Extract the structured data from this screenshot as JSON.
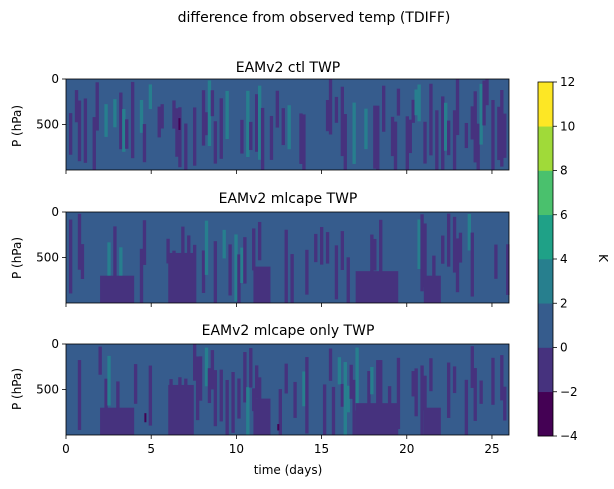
{
  "figure": {
    "suptitle": "difference from observed temp (TDIFF)"
  },
  "chart_data": {
    "type": "heatmap",
    "plot_style": "filled contour (contourf)",
    "colormap": "viridis",
    "panels": [
      {
        "title": "EAMv2 ctl TWP",
        "ylabel": "P (hPa)",
        "xlim": [
          0,
          26
        ],
        "ylim": [
          0,
          1000
        ],
        "y_inverted": true,
        "dominant_range": [
          0,
          2
        ],
        "secondary_ranges": [
          [
            -2,
            0
          ],
          [
            2,
            4
          ]
        ]
      },
      {
        "title": "EAMv2 mlcape TWP",
        "ylabel": "P (hPa)",
        "xlim": [
          0,
          26
        ],
        "ylim": [
          0,
          1000
        ],
        "y_inverted": true,
        "dominant_range": [
          0,
          2
        ],
        "secondary_ranges": [
          [
            -2,
            0
          ],
          [
            2,
            4
          ]
        ]
      },
      {
        "title": "EAMv2 mlcape only TWP",
        "ylabel": "P (hPa)",
        "xlim": [
          0,
          26
        ],
        "ylim": [
          0,
          1000
        ],
        "y_inverted": true,
        "dominant_range": [
          0,
          2
        ],
        "secondary_ranges": [
          [
            -2,
            0
          ],
          [
            2,
            4
          ],
          [
            -4,
            -2
          ]
        ]
      }
    ],
    "xlabel": "time (days)",
    "x_ticks": [
      "0",
      "5",
      "10",
      "15",
      "20",
      "25"
    ],
    "x_tick_values": [
      0,
      5,
      10,
      15,
      20,
      25
    ],
    "y_ticks": [
      "0",
      "500"
    ],
    "y_tick_values": [
      0,
      500
    ],
    "colorbar": {
      "label": "K",
      "levels": [
        -4,
        -2,
        0,
        2,
        4,
        6,
        8,
        10,
        12
      ],
      "tick_labels": [
        "−4",
        "−2",
        "0",
        "2",
        "4",
        "6",
        "8",
        "10",
        "12"
      ],
      "colors": [
        "#440154",
        "#46327e",
        "#365c8d",
        "#277f8e",
        "#1fa187",
        "#4ac16d",
        "#a0da39",
        "#fde725"
      ]
    },
    "grid": false
  }
}
